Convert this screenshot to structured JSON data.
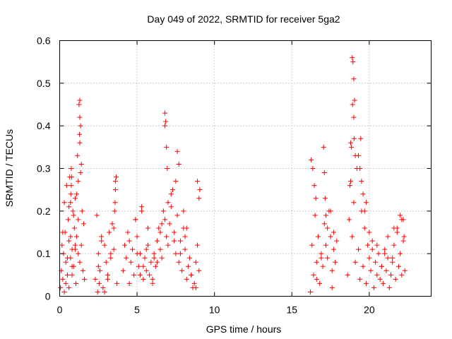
{
  "chart_data": {
    "type": "scatter",
    "title": "Day 049 of 2022, SRMTID for receiver 5ga2",
    "xlabel": "GPS time / hours",
    "ylabel": "SRMTID / TECUs",
    "xlim": [
      0,
      24
    ],
    "ylim": [
      0,
      0.6
    ],
    "xticks": [
      0,
      5,
      10,
      15,
      20
    ],
    "xtick_labels": [
      "0",
      "5",
      "10",
      "15",
      "20"
    ],
    "yticks": [
      0,
      0.1,
      0.2,
      0.3,
      0.4,
      0.5,
      0.6
    ],
    "ytick_labels": [
      "0",
      "0.1",
      "0.2",
      "0.3",
      "0.4",
      "0.5",
      "0.6"
    ],
    "grid": true,
    "marker": "+",
    "color": "#ff0000",
    "series": [
      {
        "name": "SRMTID",
        "x": [
          0.05,
          0.1,
          0.15,
          0.2,
          0.25,
          0.3,
          0.35,
          0.4,
          0.45,
          0.5,
          0.55,
          0.6,
          0.65,
          0.7,
          0.75,
          0.8,
          0.85,
          0.9,
          0.95,
          1.0,
          1.05,
          1.1,
          1.15,
          1.2,
          1.25,
          1.3,
          1.35,
          1.4,
          1.45,
          1.5,
          1.55,
          1.6,
          0.3,
          0.5,
          0.7,
          0.9,
          1.1,
          1.3,
          0.6,
          0.8,
          1.0,
          1.2,
          1.4,
          0.2,
          0.4,
          0.6,
          0.8,
          1.0,
          1.2,
          1.3,
          1.35,
          1.3,
          1.28,
          0.75,
          0.7,
          0.72,
          0.78,
          2.3,
          2.4,
          2.5,
          2.6,
          2.7,
          2.8,
          2.9,
          3.0,
          3.1,
          3.2,
          3.3,
          3.4,
          3.5,
          3.6,
          3.7,
          2.5,
          2.7,
          2.9,
          3.1,
          3.3,
          3.5,
          3.55,
          3.6,
          3.65,
          3.58,
          2.45,
          2.55,
          4.1,
          4.2,
          4.3,
          4.4,
          4.5,
          4.6,
          4.7,
          4.8,
          4.9,
          5.0,
          5.1,
          5.2,
          5.3,
          5.4,
          5.5,
          5.6,
          5.7,
          5.8,
          5.9,
          6.0,
          6.1,
          6.2,
          6.3,
          6.4,
          6.5,
          6.6,
          6.7,
          6.8,
          6.9,
          7.0,
          7.1,
          7.2,
          7.3,
          7.4,
          7.5,
          7.6,
          7.7,
          7.8,
          7.9,
          8.0,
          8.1,
          8.2,
          8.3,
          8.4,
          8.5,
          8.6,
          8.7,
          8.8,
          8.9,
          9.0,
          4.5,
          4.9,
          5.3,
          5.7,
          6.1,
          6.5,
          6.8,
          6.85,
          6.9,
          6.95,
          6.8,
          7.2,
          7.5,
          7.6,
          7.7,
          8.0,
          8.2,
          8.9,
          9.0,
          9.05,
          5.0,
          5.2,
          5.4,
          5.6,
          6.0,
          6.3,
          6.6,
          7.0,
          7.4,
          7.8,
          8.1,
          8.5,
          8.8,
          16.2,
          16.3,
          16.4,
          16.5,
          16.6,
          16.7,
          16.8,
          16.9,
          17.0,
          17.1,
          17.2,
          17.3,
          17.4,
          17.5,
          17.6,
          17.7,
          17.8,
          17.9,
          16.25,
          16.35,
          16.45,
          16.55,
          17.05,
          17.1,
          17.15,
          17.2,
          17.5,
          17.7,
          16.6,
          16.9,
          17.3,
          17.6,
          18.6,
          18.7,
          18.8,
          18.9,
          19.0,
          19.1,
          19.2,
          19.3,
          19.4,
          19.5,
          19.6,
          19.7,
          19.8,
          19.9,
          20.0,
          20.1,
          20.2,
          20.3,
          20.4,
          20.5,
          20.6,
          20.7,
          20.8,
          20.9,
          21.0,
          21.1,
          21.2,
          21.3,
          21.4,
          21.5,
          21.6,
          21.7,
          21.8,
          21.9,
          22.0,
          22.1,
          22.2,
          22.3,
          18.9,
          18.95,
          19.0,
          19.05,
          18.92,
          19.0,
          19.02,
          18.8,
          18.85,
          19.3,
          19.4,
          19.5,
          19.45,
          19.6,
          19.7,
          20.0,
          20.5,
          21.0,
          21.5,
          21.6,
          22.0,
          22.2,
          22.25,
          18.75,
          19.1,
          19.8,
          20.2,
          20.8,
          21.2,
          21.8,
          22.1
        ],
        "y": [
          0.02,
          0.06,
          0.12,
          0.04,
          0.1,
          0.22,
          0.15,
          0.08,
          0.26,
          0.05,
          0.18,
          0.13,
          0.28,
          0.09,
          0.3,
          0.11,
          0.2,
          0.07,
          0.16,
          0.23,
          0.03,
          0.14,
          0.33,
          0.1,
          0.45,
          0.36,
          0.29,
          0.12,
          0.2,
          0.06,
          0.17,
          0.04,
          0.01,
          0.09,
          0.14,
          0.19,
          0.24,
          0.08,
          0.02,
          0.07,
          0.11,
          0.27,
          0.31,
          0.15,
          0.03,
          0.21,
          0.05,
          0.12,
          0.18,
          0.42,
          0.4,
          0.46,
          0.38,
          0.26,
          0.22,
          0.24,
          0.28,
          0.04,
          0.19,
          0.1,
          0.06,
          0.14,
          0.02,
          0.12,
          0.08,
          0.05,
          0.15,
          0.09,
          0.17,
          0.11,
          0.27,
          0.03,
          0.07,
          0.13,
          0.01,
          0.04,
          0.1,
          0.16,
          0.2,
          0.25,
          0.28,
          0.22,
          0.01,
          0.03,
          0.06,
          0.12,
          0.09,
          0.15,
          0.03,
          0.08,
          0.11,
          0.05,
          0.18,
          0.14,
          0.07,
          0.1,
          0.2,
          0.04,
          0.09,
          0.06,
          0.12,
          0.05,
          0.08,
          0.03,
          0.1,
          0.07,
          0.13,
          0.16,
          0.11,
          0.09,
          0.2,
          0.18,
          0.14,
          0.12,
          0.17,
          0.21,
          0.25,
          0.15,
          0.1,
          0.19,
          0.08,
          0.13,
          0.06,
          0.16,
          0.11,
          0.04,
          0.07,
          0.09,
          0.05,
          0.02,
          0.03,
          0.08,
          0.12,
          0.06,
          0.13,
          0.18,
          0.21,
          0.16,
          0.09,
          0.15,
          0.43,
          0.41,
          0.35,
          0.3,
          0.4,
          0.24,
          0.27,
          0.34,
          0.31,
          0.2,
          0.16,
          0.27,
          0.23,
          0.25,
          0.1,
          0.05,
          0.07,
          0.11,
          0.04,
          0.08,
          0.17,
          0.22,
          0.13,
          0.1,
          0.14,
          0.05,
          0.02,
          0.01,
          0.12,
          0.05,
          0.19,
          0.08,
          0.14,
          0.03,
          0.1,
          0.07,
          0.17,
          0.12,
          0.09,
          0.2,
          0.14,
          0.06,
          0.11,
          0.08,
          0.13,
          0.32,
          0.3,
          0.26,
          0.23,
          0.35,
          0.29,
          0.23,
          0.19,
          0.2,
          0.15,
          0.04,
          0.09,
          0.16,
          0.02,
          0.05,
          0.18,
          0.27,
          0.14,
          0.22,
          0.08,
          0.3,
          0.11,
          0.04,
          0.2,
          0.07,
          0.16,
          0.03,
          0.12,
          0.09,
          0.06,
          0.13,
          0.02,
          0.08,
          0.05,
          0.1,
          0.04,
          0.07,
          0.03,
          0.11,
          0.06,
          0.09,
          0.02,
          0.05,
          0.08,
          0.12,
          0.04,
          0.15,
          0.07,
          0.1,
          0.05,
          0.13,
          0.06,
          0.56,
          0.55,
          0.51,
          0.46,
          0.45,
          0.42,
          0.37,
          0.36,
          0.35,
          0.33,
          0.3,
          0.27,
          0.37,
          0.24,
          0.2,
          0.15,
          0.12,
          0.1,
          0.09,
          0.16,
          0.19,
          0.18,
          0.14,
          0.26,
          0.33,
          0.22,
          0.11,
          0.07,
          0.14,
          0.16,
          0.18
        ]
      }
    ]
  }
}
